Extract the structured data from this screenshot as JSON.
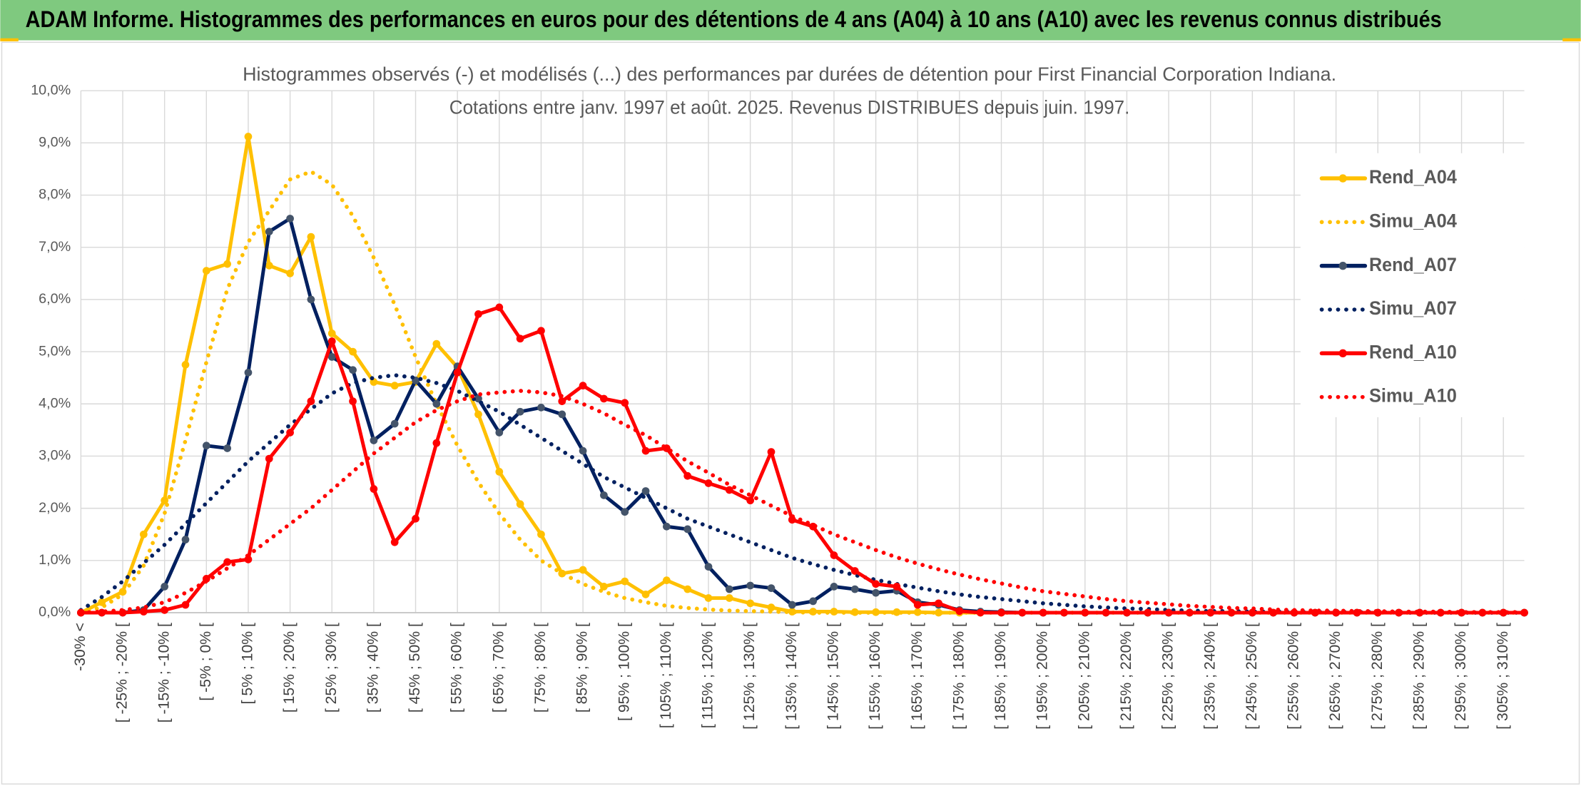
{
  "header": {
    "title": "ADAM Informe. Histogrammes des performances en euros pour des détentions de 4 ans (A04) à 10 ans (A10) avec les revenus connus distribués"
  },
  "chart_data": {
    "type": "line",
    "title": "Histogrammes observés (-) et modélisés (...) des performances par durées de détention pour First Financial Corporation Indiana.",
    "subtitle": "Cotations entre janv. 1997 et août. 2025. Revenus DISTRIBUES depuis juin. 1997.",
    "categories": [
      "-30% <",
      null,
      "[ -25% ; -20% [",
      null,
      "[ -15% ; -10% [",
      null,
      "[ -5% ; 0% [",
      null,
      "[ 5% ; 10% [",
      null,
      "[ 15% ; 20% [",
      null,
      "[ 25% ; 30% [",
      null,
      "[ 35% ; 40% [",
      null,
      "[ 45% ; 50% [",
      null,
      "[ 55% ; 60% [",
      null,
      "[ 65% ; 70% [",
      null,
      "[ 75% ; 80% [",
      null,
      "[ 85% ; 90% [",
      null,
      "[ 95% ; 100% [",
      null,
      "[ 105% ; 110% [",
      null,
      "[ 115% ; 120% [",
      null,
      "[ 125% ; 130% [",
      null,
      "[ 135% ; 140% [",
      null,
      "[ 145% ; 150% [",
      null,
      "[ 155% ; 160% [",
      null,
      "[ 165% ; 170% [",
      null,
      "[ 175% ; 180% [",
      null,
      "[ 185% ; 190% [",
      null,
      "[ 195% ; 200% [",
      null,
      "[ 205% ; 210% [",
      null,
      "[ 215% ; 220% [",
      null,
      "[ 225% ; 230% [",
      null,
      "[ 235% ; 240% [",
      null,
      "[ 245% ; 250% [",
      null,
      "[ 255% ; 260% [",
      null,
      "[ 265% ; 270% [",
      null,
      "[ 275% ; 280% [",
      null,
      "[ 285% ; 290% [",
      null,
      "[ 295% ; 300% [",
      null,
      "[ 305% ; 310% [",
      null
    ],
    "series": [
      {
        "name": "Rend_A04",
        "color": "#FFC000",
        "style": "solid",
        "markers": true,
        "values": [
          0,
          0.2,
          0.4,
          1.5,
          2.15,
          4.75,
          6.55,
          6.68,
          9.12,
          6.65,
          6.5,
          7.2,
          5.35,
          5.0,
          4.42,
          4.35,
          4.42,
          5.15,
          4.7,
          3.8,
          2.7,
          2.08,
          1.5,
          0.75,
          0.82,
          0.5,
          0.6,
          0.35,
          0.62,
          0.45,
          0.28,
          0.28,
          0.18,
          0.1,
          0.02,
          0.02,
          0.02,
          0.01,
          0.01,
          0.01,
          0.01,
          0,
          0,
          0,
          0,
          0,
          0,
          0,
          0,
          0,
          0,
          0,
          0,
          0,
          0,
          0,
          0,
          0,
          0,
          0,
          0,
          0,
          0,
          0,
          0,
          0,
          0,
          0,
          0,
          0
        ]
      },
      {
        "name": "Simu_A04",
        "color": "#FFC000",
        "style": "dotted",
        "markers": false,
        "values": [
          0,
          0.1,
          0.35,
          0.9,
          1.9,
          3.3,
          4.8,
          6.2,
          7.1,
          7.7,
          8.3,
          8.45,
          8.2,
          7.6,
          6.8,
          5.9,
          4.9,
          4.0,
          3.2,
          2.5,
          1.9,
          1.4,
          1.0,
          0.75,
          0.55,
          0.4,
          0.28,
          0.2,
          0.13,
          0.09,
          0.06,
          0.04,
          0.03,
          0.02,
          0.01,
          0,
          0,
          0,
          0,
          0,
          0,
          0,
          0,
          0,
          0,
          0,
          0,
          0,
          0,
          0,
          0,
          0,
          0,
          0,
          0,
          0,
          0,
          0,
          0,
          0,
          0,
          0,
          0,
          0,
          0,
          0,
          0,
          0,
          0,
          0
        ]
      },
      {
        "name": "Rend_A07",
        "color": "#002060",
        "marker_color": "#44546A",
        "style": "solid",
        "markers": true,
        "values": [
          0,
          0,
          0,
          0.05,
          0.5,
          1.4,
          3.2,
          3.15,
          4.6,
          7.3,
          7.55,
          6.0,
          4.9,
          4.65,
          3.3,
          3.62,
          4.45,
          4.0,
          4.72,
          4.1,
          3.45,
          3.85,
          3.93,
          3.8,
          3.1,
          2.25,
          1.93,
          2.33,
          1.65,
          1.6,
          0.88,
          0.45,
          0.52,
          0.47,
          0.15,
          0.22,
          0.5,
          0.45,
          0.38,
          0.42,
          0.2,
          0.15,
          0.05,
          0.02,
          0.01,
          0,
          0,
          0,
          0,
          0,
          0,
          0,
          0,
          0,
          0,
          0,
          0,
          0,
          0,
          0,
          0,
          0,
          0,
          0,
          0,
          0,
          0,
          0,
          0,
          0
        ]
      },
      {
        "name": "Simu_A07",
        "color": "#002060",
        "style": "dotted",
        "markers": false,
        "values": [
          0.05,
          0.3,
          0.6,
          0.95,
          1.3,
          1.7,
          2.1,
          2.5,
          2.9,
          3.25,
          3.6,
          3.9,
          4.2,
          4.4,
          4.5,
          4.55,
          4.5,
          4.4,
          4.25,
          4.05,
          3.85,
          3.6,
          3.35,
          3.1,
          2.85,
          2.6,
          2.4,
          2.2,
          2.0,
          1.8,
          1.65,
          1.5,
          1.35,
          1.2,
          1.05,
          0.93,
          0.82,
          0.72,
          0.63,
          0.55,
          0.48,
          0.41,
          0.35,
          0.3,
          0.26,
          0.22,
          0.18,
          0.15,
          0.12,
          0.1,
          0.08,
          0.07,
          0.05,
          0.04,
          0.03,
          0.03,
          0.02,
          0.02,
          0.01,
          0.01,
          0.01,
          0.01,
          0.01,
          0,
          0,
          0,
          0,
          0,
          0,
          0
        ]
      },
      {
        "name": "Rend_A10",
        "color": "#FF0000",
        "style": "solid",
        "markers": true,
        "values": [
          0,
          0,
          0,
          0.02,
          0.05,
          0.15,
          0.65,
          0.97,
          1.02,
          2.95,
          3.45,
          4.05,
          5.2,
          4.05,
          2.37,
          1.35,
          1.8,
          3.25,
          4.6,
          5.72,
          5.85,
          5.25,
          5.4,
          4.05,
          4.35,
          4.1,
          4.02,
          3.1,
          3.15,
          2.62,
          2.48,
          2.35,
          2.15,
          3.08,
          1.78,
          1.65,
          1.1,
          0.8,
          0.55,
          0.5,
          0.15,
          0.18,
          0.03,
          0,
          0,
          0,
          0,
          0,
          0,
          0,
          0,
          0,
          0,
          0,
          0,
          0,
          0,
          0,
          0,
          0,
          0,
          0,
          0,
          0,
          0,
          0,
          0,
          0,
          0,
          0
        ]
      },
      {
        "name": "Simu_A10",
        "color": "#FF0000",
        "style": "dotted",
        "markers": false,
        "values": [
          0,
          0.02,
          0.05,
          0.1,
          0.2,
          0.38,
          0.6,
          0.85,
          1.1,
          1.4,
          1.7,
          2.0,
          2.35,
          2.7,
          3.05,
          3.35,
          3.65,
          3.88,
          4.05,
          4.18,
          4.22,
          4.25,
          4.22,
          4.15,
          4.0,
          3.82,
          3.6,
          3.4,
          3.15,
          2.9,
          2.68,
          2.45,
          2.25,
          2.05,
          1.85,
          1.68,
          1.5,
          1.35,
          1.2,
          1.06,
          0.94,
          0.83,
          0.73,
          0.64,
          0.56,
          0.48,
          0.41,
          0.36,
          0.31,
          0.26,
          0.22,
          0.19,
          0.16,
          0.13,
          0.11,
          0.09,
          0.08,
          0.06,
          0.05,
          0.04,
          0.04,
          0.03,
          0.03,
          0.02,
          0.02,
          0.02,
          0.01,
          0.01,
          0.01,
          0.01
        ]
      }
    ],
    "ylim": [
      0,
      10
    ],
    "yticks": [
      {
        "value": 0,
        "label": "0,0%"
      },
      {
        "value": 1,
        "label": "1,0%"
      },
      {
        "value": 2,
        "label": "2,0%"
      },
      {
        "value": 3,
        "label": "3,0%"
      },
      {
        "value": 4,
        "label": "4,0%"
      },
      {
        "value": 5,
        "label": "5,0%"
      },
      {
        "value": 6,
        "label": "6,0%"
      },
      {
        "value": 7,
        "label": "7,0%"
      },
      {
        "value": 8,
        "label": "8,0%"
      },
      {
        "value": 9,
        "label": "9,0%"
      },
      {
        "value": 10,
        "label": "10,0%"
      }
    ],
    "grid": true,
    "legend": "right"
  }
}
